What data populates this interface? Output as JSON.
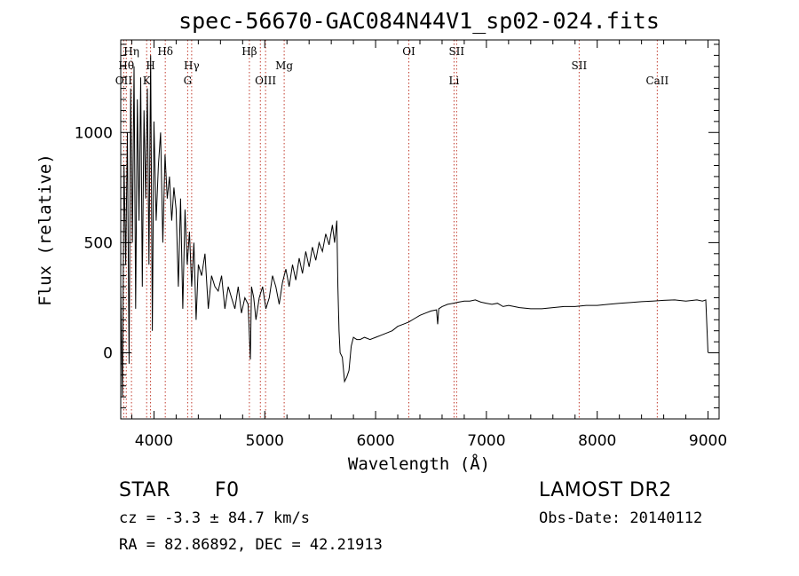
{
  "chart_data": {
    "type": "line",
    "title": "spec-56670-GAC084N44V1_sp02-024.fits",
    "xlabel": "Wavelength (Å)",
    "ylabel": "Flux (relative)",
    "xlim": [
      3700,
      9100
    ],
    "ylim": [
      -300,
      1420
    ],
    "xticks": [
      4000,
      5000,
      6000,
      7000,
      8000,
      9000
    ],
    "yticks": [
      0,
      500,
      1000
    ],
    "series": [
      {
        "x": [
          3700,
          3715,
          3730,
          3745,
          3760,
          3775,
          3790,
          3805,
          3820,
          3835,
          3850,
          3865,
          3880,
          3895,
          3910,
          3925,
          3940,
          3955,
          3970,
          3985,
          4000,
          4020,
          4040,
          4060,
          4080,
          4100,
          4120,
          4140,
          4160,
          4180,
          4200,
          4220,
          4240,
          4260,
          4280,
          4300,
          4320,
          4340,
          4360,
          4380,
          4400,
          4430,
          4460,
          4490,
          4520,
          4550,
          4580,
          4610,
          4640,
          4670,
          4700,
          4730,
          4760,
          4790,
          4820,
          4850,
          4870,
          4880,
          4900,
          4920,
          4950,
          4980,
          5010,
          5040,
          5070,
          5100,
          5130,
          5160,
          5190,
          5220,
          5250,
          5280,
          5310,
          5340,
          5370,
          5400,
          5430,
          5460,
          5490,
          5520,
          5550,
          5580,
          5610,
          5630,
          5650,
          5660,
          5670,
          5680,
          5700,
          5720,
          5740,
          5760,
          5780,
          5800,
          5830,
          5860,
          5900,
          5950,
          6000,
          6050,
          6100,
          6150,
          6200,
          6250,
          6300,
          6350,
          6400,
          6450,
          6500,
          6550,
          6560,
          6570,
          6600,
          6650,
          6700,
          6750,
          6800,
          6850,
          6900,
          6950,
          7000,
          7050,
          7100,
          7150,
          7200,
          7250,
          7300,
          7400,
          7500,
          7600,
          7700,
          7800,
          7900,
          8000,
          8100,
          8200,
          8300,
          8400,
          8500,
          8600,
          8700,
          8800,
          8900,
          8950,
          8980,
          9000
        ],
        "y": [
          300,
          -200,
          850,
          400,
          1000,
          -50,
          1200,
          500,
          1300,
          200,
          1150,
          600,
          1250,
          300,
          1100,
          700,
          1200,
          400,
          1350,
          100,
          1050,
          600,
          850,
          1000,
          500,
          900,
          700,
          800,
          600,
          750,
          650,
          300,
          700,
          200,
          650,
          400,
          550,
          300,
          500,
          150,
          400,
          350,
          450,
          200,
          350,
          300,
          280,
          350,
          200,
          300,
          250,
          200,
          300,
          180,
          250,
          220,
          -30,
          300,
          250,
          150,
          250,
          300,
          200,
          250,
          350,
          300,
          220,
          320,
          380,
          300,
          400,
          330,
          430,
          360,
          460,
          390,
          480,
          420,
          500,
          460,
          540,
          490,
          580,
          500,
          600,
          300,
          100,
          0,
          -20,
          -130,
          -110,
          -80,
          30,
          70,
          60,
          60,
          70,
          60,
          70,
          80,
          90,
          100,
          120,
          130,
          140,
          155,
          170,
          180,
          190,
          195,
          130,
          200,
          210,
          220,
          225,
          230,
          235,
          235,
          240,
          230,
          225,
          220,
          225,
          210,
          215,
          210,
          205,
          200,
          200,
          205,
          210,
          210,
          215,
          215,
          220,
          225,
          228,
          232,
          235,
          238,
          240,
          235,
          240,
          235,
          240,
          0
        ]
      }
    ],
    "lines": [
      {
        "x": 3727,
        "label": "OII",
        "row": 3
      },
      {
        "x": 3750,
        "label": "Hθ",
        "row": 2
      },
      {
        "x": 3797,
        "label": "Hη",
        "row": 1
      },
      {
        "x": 3934,
        "label": "K",
        "row": 3
      },
      {
        "x": 3969,
        "label": "H",
        "row": 2
      },
      {
        "x": 4102,
        "label": "Hδ",
        "row": 1
      },
      {
        "x": 4304,
        "label": "G",
        "row": 3
      },
      {
        "x": 4340,
        "label": "Hγ",
        "row": 2
      },
      {
        "x": 4861,
        "label": "Hβ",
        "row": 1
      },
      {
        "x": 4960,
        "label": "",
        "row": 0
      },
      {
        "x": 5007,
        "label": "OIII",
        "row": 3
      },
      {
        "x": 5175,
        "label": "Mg",
        "row": 2
      },
      {
        "x": 6300,
        "label": "OI",
        "row": 1
      },
      {
        "x": 6708,
        "label": "Li",
        "row": 3
      },
      {
        "x": 6731,
        "label": "SII",
        "row": 1
      },
      {
        "x": 7837,
        "label": "SII",
        "row": 2
      },
      {
        "x": 8542,
        "label": "CaII",
        "row": 3
      }
    ]
  },
  "info": {
    "class_label": "STAR",
    "subclass": "F0",
    "survey": "LAMOST DR2",
    "velocity": "cz = -3.3 ± 84.7 km/s",
    "obs_date": "Obs-Date: 20140112",
    "coords": "RA =  82.86892, DEC =  42.21913"
  },
  "colors": {
    "line_marker": "#c0392b",
    "spectrum": "#000000"
  }
}
